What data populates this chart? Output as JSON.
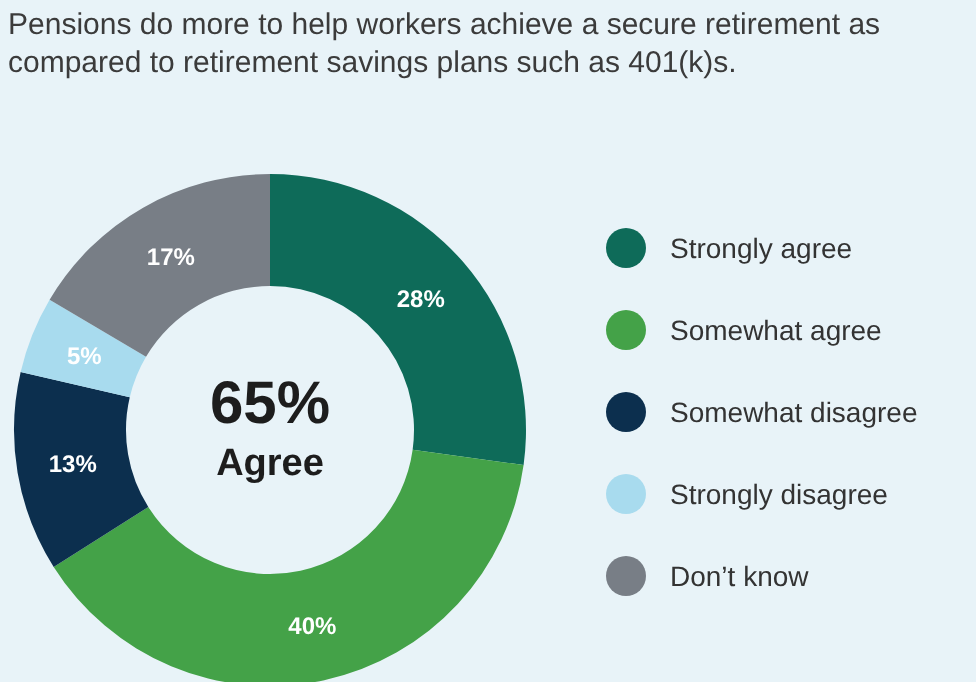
{
  "chart_data": {
    "type": "donut",
    "title": "Pensions do more to help workers achieve a secure retirement as compared to retirement savings plans such as 401(k)s.",
    "categories": [
      "Strongly agree",
      "Somewhat agree",
      "Somewhat disagree",
      "Strongly disagree",
      "Don’t know"
    ],
    "values": [
      28,
      40,
      13,
      5,
      17
    ],
    "colors": [
      "#0e6b59",
      "#44a248",
      "#0c2f4e",
      "#a8dbee",
      "#787e86"
    ],
    "value_labels": [
      "28%",
      "40%",
      "13%",
      "5%",
      "17%"
    ],
    "annotations": [
      "65%",
      "Agree"
    ],
    "legend": "right"
  }
}
